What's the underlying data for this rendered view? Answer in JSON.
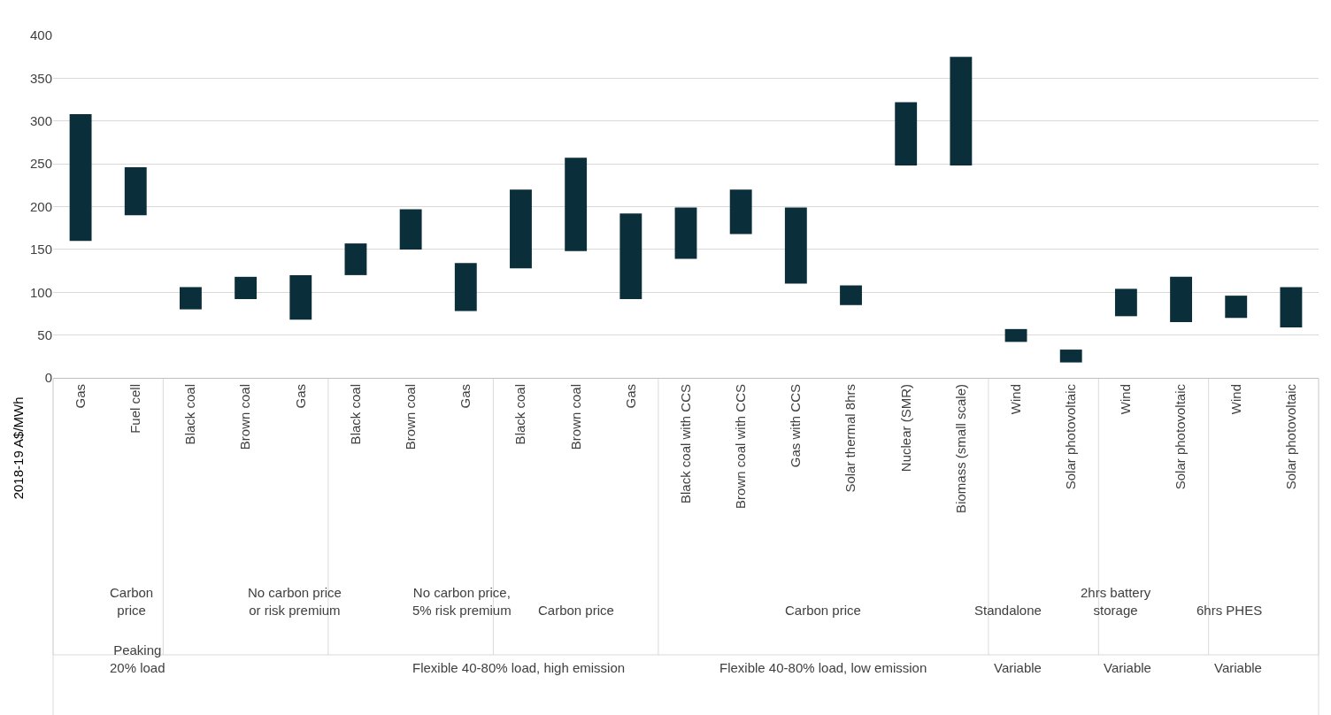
{
  "chart_data": {
    "type": "bar",
    "ylabel": "2018-19 A$/MWh",
    "categories": [
      "Gas",
      "Fuel cell",
      "Black coal",
      "Brown coal",
      "Gas",
      "Black coal",
      "Brown coal",
      "Gas",
      "Black coal",
      "Brown coal",
      "Gas",
      "Black coal with CCS",
      "Brown coal with CCS",
      "Gas with CCS",
      "Solar thermal 8hrs",
      "Nuclear (SMR)",
      "Biomass (small scale)",
      "Wind",
      "Solar photovoltaic",
      "Wind",
      "Solar photovoltaic",
      "Wind",
      "Solar photovoltaic"
    ],
    "base": [
      160,
      190,
      80,
      92,
      68,
      120,
      150,
      78,
      128,
      148,
      92,
      139,
      168,
      110,
      85,
      248,
      248,
      42,
      18,
      72,
      65,
      70,
      59
    ],
    "values": [
      148,
      56,
      26,
      26,
      52,
      37,
      47,
      56,
      92,
      109,
      100,
      60,
      52,
      89,
      23,
      74,
      127,
      15,
      15,
      32,
      53,
      26,
      47
    ],
    "color": "#0b2f3a",
    "ylim": [
      0,
      400
    ],
    "yticks": [
      0,
      50,
      100,
      150,
      200,
      250,
      300,
      350,
      400
    ],
    "grid": "y",
    "legend": false,
    "annotations": [
      "Carbon\nprice",
      "No carbon price\nor risk premium",
      "No carbon price,\n5% risk premium",
      "Carbon price",
      "Carbon price",
      "Standalone",
      "2hrs battery\nstorage",
      "6hrs PHES",
      "Peaking\n20% load",
      "Flexible 40-80% load, high emission",
      "Flexible 40-80% load, low emission",
      "Variable",
      "Variable",
      "Variable"
    ]
  }
}
